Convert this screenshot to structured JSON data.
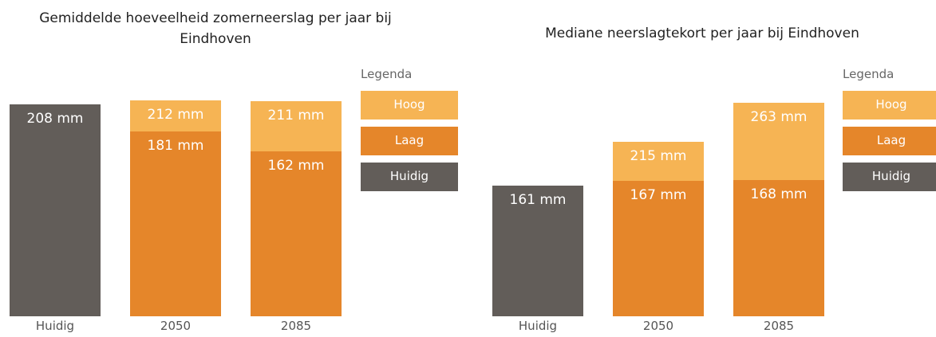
{
  "chart_data": [
    {
      "type": "bar",
      "title": "Gemiddelde hoeveelheid zomerneerslag per jaar bij Eindhoven",
      "categories": [
        "Huidig",
        "2050",
        "2085"
      ],
      "legend_title": "Legenda",
      "ylim": [
        0,
        220
      ],
      "series": [
        {
          "name": "Hoog",
          "color": "#f6b454",
          "values": [
            null,
            212,
            211
          ],
          "value_labels": [
            null,
            "212 mm",
            "211 mm"
          ]
        },
        {
          "name": "Laag",
          "color": "#e5862a",
          "values": [
            null,
            181,
            162
          ],
          "value_labels": [
            null,
            "181 mm",
            "162 mm"
          ]
        },
        {
          "name": "Huidig",
          "color": "#625d59",
          "values": [
            208,
            null,
            null
          ],
          "value_labels": [
            "208 mm",
            null,
            null
          ]
        }
      ]
    },
    {
      "type": "bar",
      "title": "Mediane neerslagtekort per jaar bij Eindhoven",
      "categories": [
        "Huidig",
        "2050",
        "2085"
      ],
      "legend_title": "Legenda",
      "ylim": [
        0,
        280
      ],
      "series": [
        {
          "name": "Hoog",
          "color": "#f6b454",
          "values": [
            null,
            215,
            263
          ],
          "value_labels": [
            null,
            "215 mm",
            "263 mm"
          ]
        },
        {
          "name": "Laag",
          "color": "#e5862a",
          "values": [
            null,
            167,
            168
          ],
          "value_labels": [
            null,
            "167 mm",
            "168 mm"
          ]
        },
        {
          "name": "Huidig",
          "color": "#625d59",
          "values": [
            161,
            null,
            null
          ],
          "value_labels": [
            "161 mm",
            null,
            null
          ]
        }
      ]
    }
  ]
}
